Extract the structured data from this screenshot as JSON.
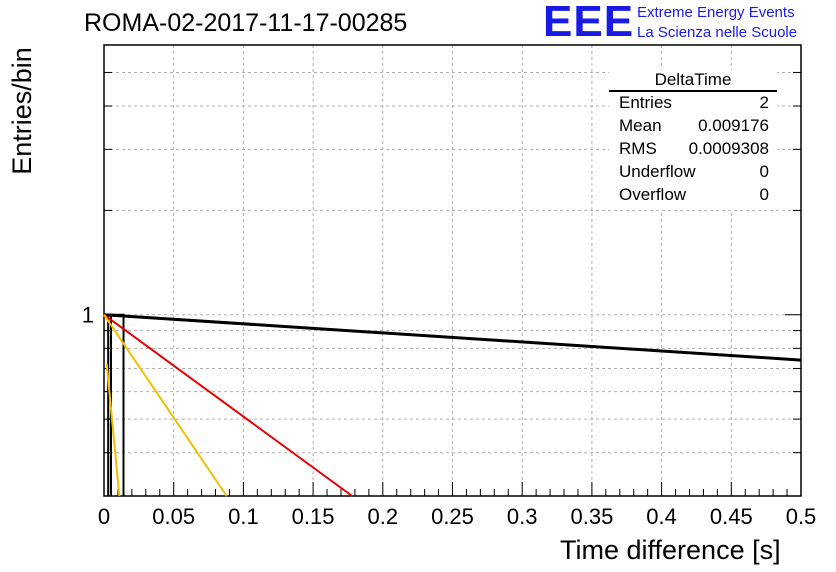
{
  "chart_data": {
    "type": "line",
    "title": "ROMA-02-2017-11-17-00285",
    "xlabel": "Time difference [s]",
    "ylabel": "Entries/bin",
    "xlim": [
      0,
      0.5
    ],
    "ylim": [
      0.3,
      6
    ],
    "y_scale": "log",
    "grid": true,
    "x_ticks": [
      "0",
      "0.05",
      "0.1",
      "0.15",
      "0.2",
      "0.25",
      "0.3",
      "0.35",
      "0.4",
      "0.45",
      "0.5"
    ],
    "y_tick_labels": [
      "1"
    ],
    "histogram_bins": [
      {
        "x_low": 0.003,
        "x_high": 0.005,
        "content": 1
      },
      {
        "x_low": 0.005,
        "x_high": 0.014,
        "content": 1
      }
    ],
    "series": [
      {
        "color": "#000000",
        "x": [
          0,
          0.5
        ],
        "y": [
          1.0,
          0.74
        ]
      },
      {
        "color": "#e60000",
        "x": [
          0,
          0.178
        ],
        "y": [
          1.0,
          0.3
        ]
      },
      {
        "color": "#f0c000",
        "x": [
          0,
          0.088
        ],
        "y": [
          1.0,
          0.3
        ]
      },
      {
        "color": "#f0c000",
        "x": [
          0.002,
          0.011
        ],
        "y": [
          0.72,
          0.3
        ]
      }
    ]
  },
  "stats": {
    "title": "DeltaTime",
    "rows": [
      {
        "label": "Entries",
        "value": "2"
      },
      {
        "label": "Mean",
        "value": "0.009176"
      },
      {
        "label": "RMS",
        "value": "0.0009308"
      },
      {
        "label": "Underflow",
        "value": "0"
      },
      {
        "label": "Overflow",
        "value": "0"
      }
    ]
  },
  "logo": {
    "mark": "EEE",
    "line1": "Extreme Energy Events",
    "line2": "La Scienza nelle Scuole"
  }
}
